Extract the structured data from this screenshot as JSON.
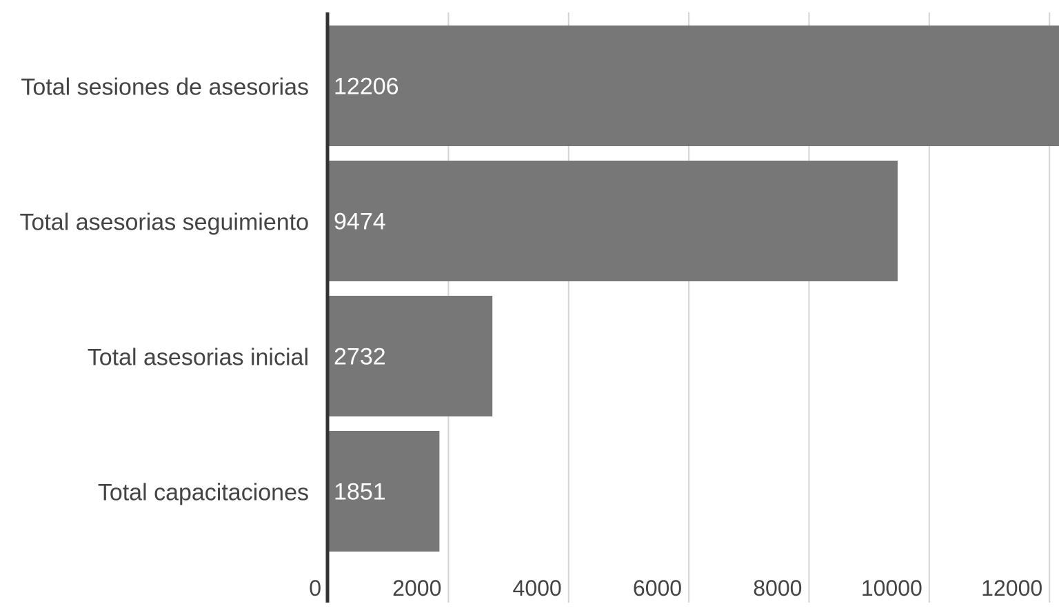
{
  "chart_data": {
    "type": "bar",
    "orientation": "horizontal",
    "title": "",
    "xlabel": "",
    "ylabel": "",
    "categories": [
      "Total sesiones de asesorias",
      "Total asesorias seguimiento",
      "Total asesorias inicial",
      "Total capacitaciones"
    ],
    "values": [
      12206,
      9474,
      2732,
      1851
    ],
    "data_labels": [
      "12206",
      "9474",
      "2732",
      "1851"
    ],
    "x_ticks": [
      0,
      2000,
      4000,
      6000,
      8000,
      10000,
      12000
    ],
    "x_tick_labels": [
      "0",
      "2000",
      "4000",
      "6000",
      "8000",
      "10000",
      "12000"
    ],
    "xlim": [
      0,
      12300
    ],
    "grid": "vertical",
    "legend": "none",
    "colors": {
      "bar": "#777777",
      "bar_label": "#ffffff",
      "text": "#444444",
      "grid": "#d4d4d4",
      "axis": "#333333"
    }
  }
}
